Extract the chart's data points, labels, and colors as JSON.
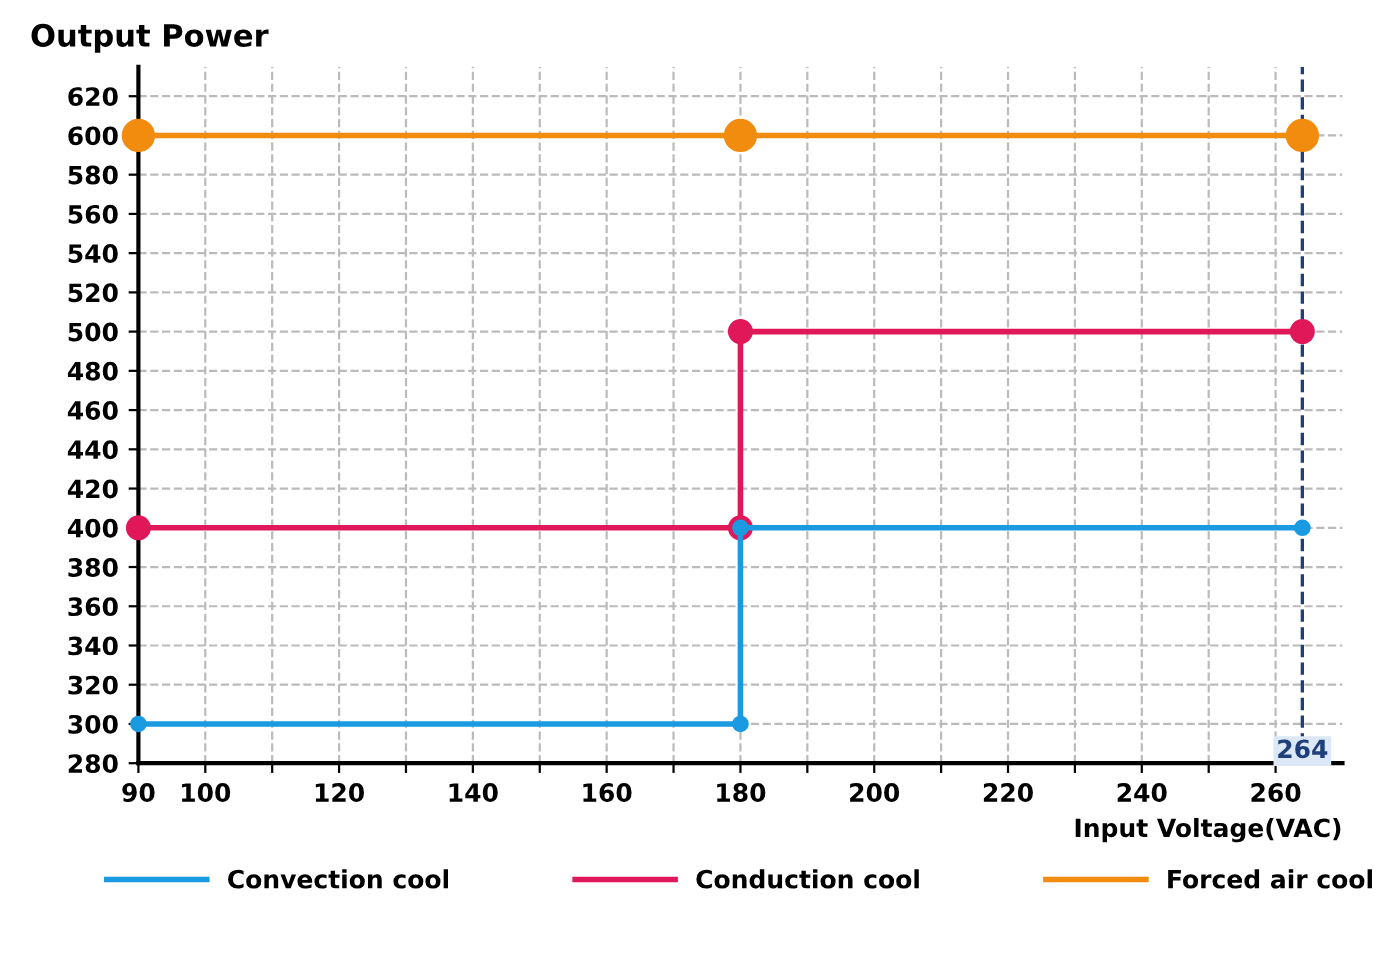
{
  "chart_data": {
    "type": "line",
    "xlabel": "Input Voltage(VAC)",
    "ylabel": "Output Power",
    "xlim": [
      90,
      270
    ],
    "ylim": [
      280,
      635
    ],
    "xticks": [
      90,
      100,
      {
        "value": 110,
        "label": null
      },
      120,
      {
        "value": 130,
        "label": null
      },
      140,
      {
        "value": 150,
        "label": null
      },
      160,
      {
        "value": 170,
        "label": null
      },
      180,
      {
        "value": 190,
        "label": null
      },
      200,
      {
        "value": 210,
        "label": null
      },
      220,
      {
        "value": 230,
        "label": null
      },
      240,
      {
        "value": 250,
        "label": null
      },
      260
    ],
    "yticks": [
      280,
      300,
      320,
      340,
      360,
      380,
      400,
      420,
      440,
      460,
      480,
      500,
      520,
      540,
      560,
      580,
      600,
      620
    ],
    "grid": true,
    "marker": "circle",
    "line_style": "solid",
    "legend": "bottom",
    "series": [
      {
        "name": "Convection cool",
        "color": "#1a9ae0",
        "x": [
          90,
          180,
          180,
          264
        ],
        "values": [
          300,
          300,
          400,
          400
        ]
      },
      {
        "name": "Conduction cool",
        "color": "#e0185a",
        "x": [
          90,
          180,
          180,
          264
        ],
        "values": [
          400,
          400,
          500,
          500
        ]
      },
      {
        "name": "Forced air cool",
        "color": "#f28c0f",
        "x": [
          90,
          180,
          264
        ],
        "values": [
          600,
          600,
          600
        ]
      }
    ],
    "ref_lines": [
      {
        "axis": "x",
        "value": 264,
        "label": "264",
        "color": "#1f3f7a",
        "line_style": "dashed"
      }
    ]
  }
}
